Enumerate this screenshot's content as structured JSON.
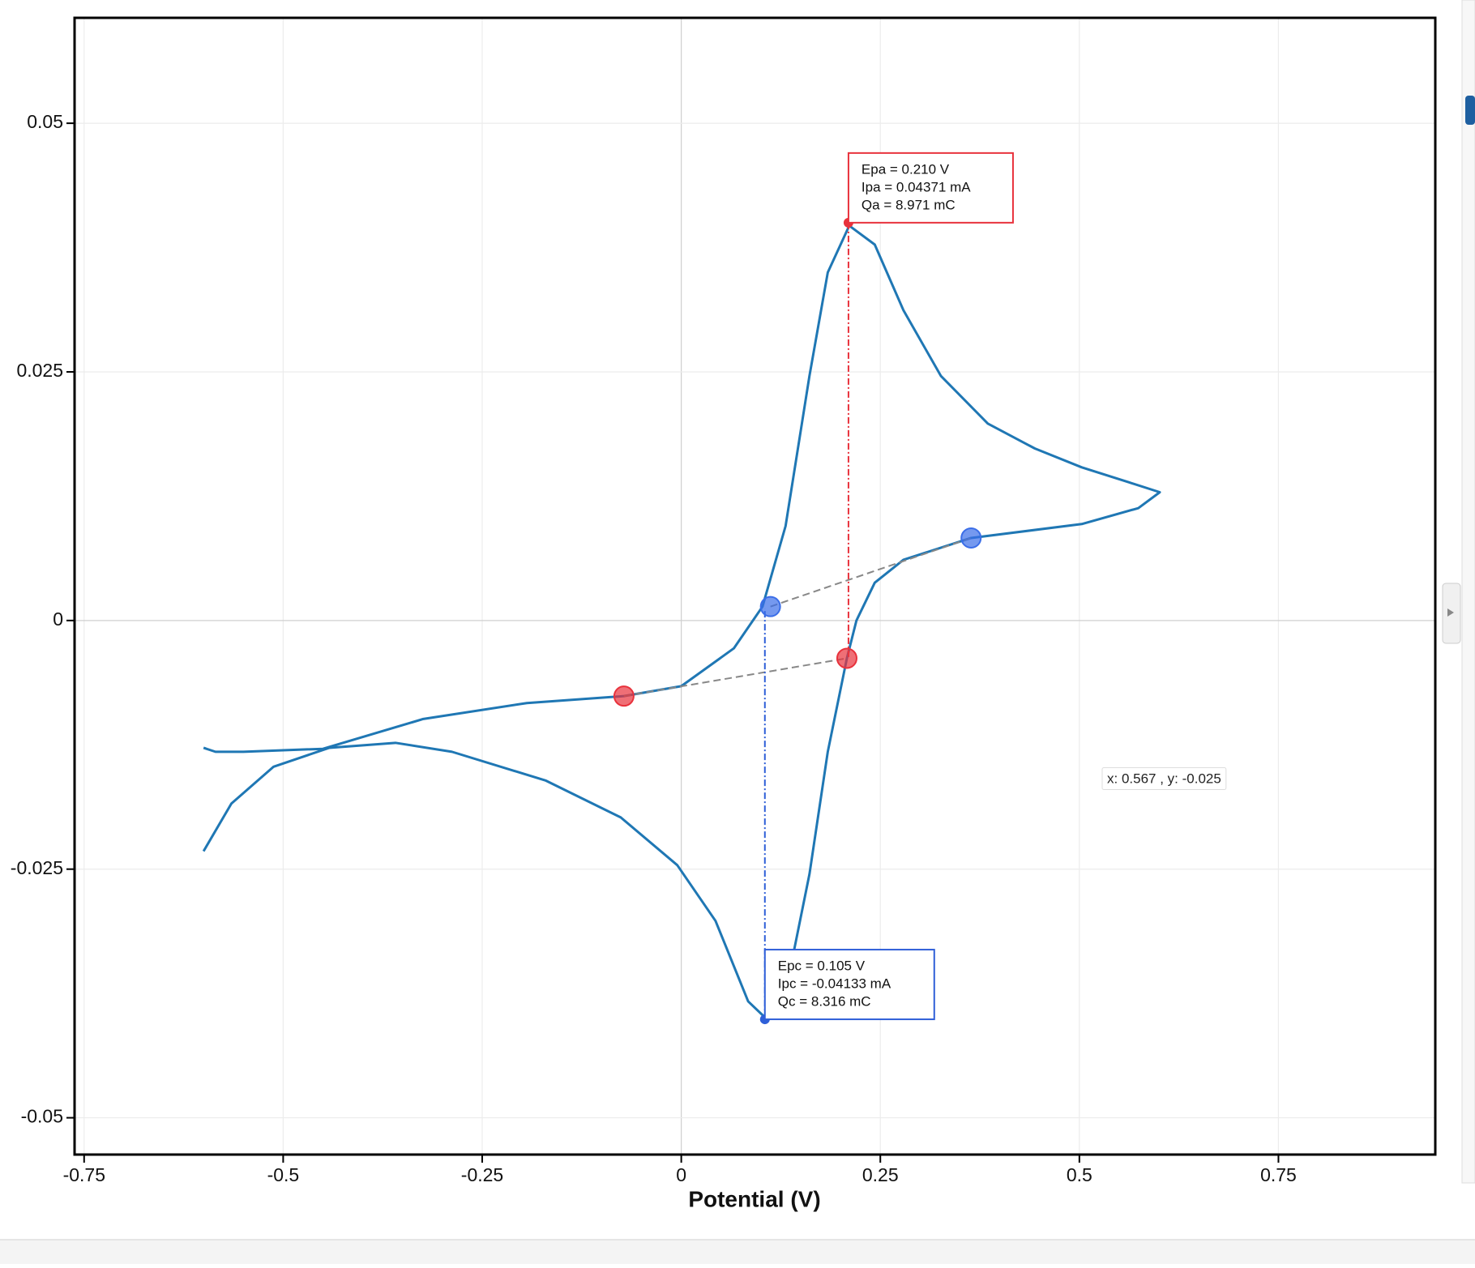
{
  "chart_data": {
    "type": "line",
    "x_label": "Potential (V)",
    "xlim": [
      -0.762,
      0.947
    ],
    "ylim": [
      -0.0537,
      0.0606
    ],
    "xticks": [
      -0.75,
      -0.5,
      -0.25,
      0,
      0.25,
      0.5,
      0.75
    ],
    "yticks": [
      0.05,
      0.025,
      0,
      -0.025,
      -0.05
    ],
    "grid": true,
    "series": [
      {
        "color": "#1f77b4",
        "x": [
          -0.6,
          -0.585,
          -0.55,
          -0.45,
          -0.324,
          -0.194,
          -0.072,
          0,
          0.066,
          0.102,
          0.131,
          0.161,
          0.184,
          0.211,
          0.243,
          0.279,
          0.326,
          0.385,
          0.444,
          0.503,
          0.562,
          0.601,
          0.574,
          0.503,
          0.364,
          0.279,
          0.243,
          0.22,
          0.208,
          0.184,
          0.161,
          0.137,
          0.119,
          0.105,
          0.084,
          0.043,
          -0.005,
          -0.076,
          -0.17,
          -0.288,
          -0.359,
          -0.442,
          -0.512,
          -0.565,
          -0.6
        ],
        "values": [
          -0.0128,
          -0.0132,
          -0.0132,
          -0.0129,
          -0.0099,
          -0.0083,
          -0.0076,
          -0.0066,
          -0.0028,
          0.0014,
          0.0095,
          0.0246,
          0.035,
          0.0397,
          0.0378,
          0.0312,
          0.0246,
          0.0198,
          0.0173,
          0.0154,
          0.0139,
          0.0129,
          0.0113,
          0.0097,
          0.0083,
          0.0061,
          0.0038,
          0,
          -0.0038,
          -0.0132,
          -0.0255,
          -0.035,
          -0.0392,
          -0.0399,
          -0.0383,
          -0.0302,
          -0.0246,
          -0.0198,
          -0.0161,
          -0.0132,
          -0.0123,
          -0.0128,
          -0.0147,
          -0.0184,
          -0.0232
        ]
      }
    ],
    "baselines": [
      {
        "color": "#e8323c",
        "x": [
          -0.072,
          0.208
        ],
        "y": [
          -0.0076,
          -0.0038
        ]
      },
      {
        "color": "#3b6ee8",
        "x": [
          0.112,
          0.364
        ],
        "y": [
          0.0014,
          0.0083
        ]
      }
    ],
    "annotations": [
      {
        "color": "#e8323c",
        "x": 0.21,
        "y": 0.04,
        "lines": [
          "Epa = 0.210 V",
          "Ipa = 0.04371 mA",
          "Qa = 8.971 mC"
        ]
      },
      {
        "color": "#2f5fd8",
        "x": 0.105,
        "y": -0.0401,
        "lines": [
          "Epc = 0.105 V",
          "Ipc = -0.04133 mA",
          "Qc = 8.316 mC"
        ]
      }
    ],
    "tooltip": "x: 0.567 , y: -0.025"
  }
}
